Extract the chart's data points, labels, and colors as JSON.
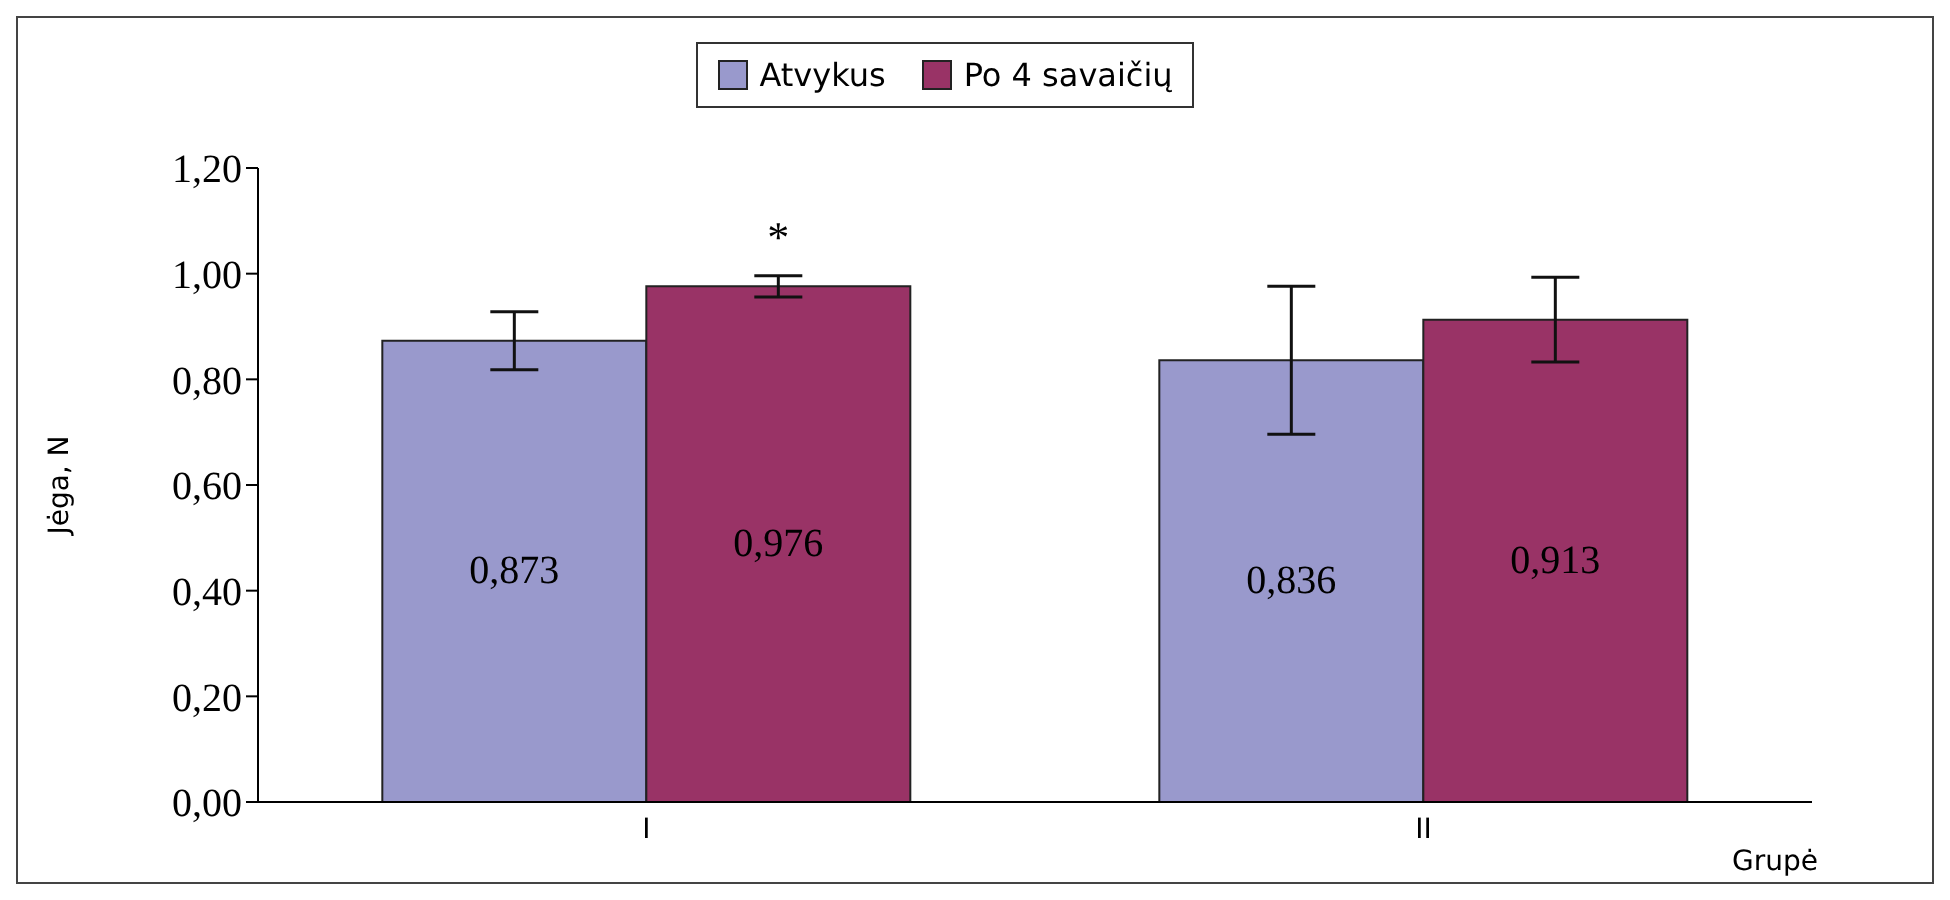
{
  "chart_data": {
    "type": "bar",
    "categories": [
      "I",
      "II"
    ],
    "series": [
      {
        "name": "Atvykus",
        "color": "#9999cc",
        "values": [
          0.873,
          0.836
        ],
        "errors": [
          0.055,
          0.14
        ],
        "value_labels": [
          "0,873",
          "0,836"
        ]
      },
      {
        "name": "Po 4 savaičių",
        "color": "#993366",
        "values": [
          0.976,
          0.913
        ],
        "errors": [
          0.02,
          0.08
        ],
        "value_labels": [
          "0,976",
          "0,913"
        ]
      }
    ],
    "ylabel": "Jėga, N",
    "xlabel": "Grupė",
    "ylim": [
      0,
      1.2
    ],
    "yticks": [
      {
        "value": 0,
        "label": "0,00"
      },
      {
        "value": 0.2,
        "label": "0,20"
      },
      {
        "value": 0.4,
        "label": "0,40"
      },
      {
        "value": 0.6,
        "label": "0,60"
      },
      {
        "value": 0.8,
        "label": "0,80"
      },
      {
        "value": 1,
        "label": "1,00"
      },
      {
        "value": 1.2,
        "label": "1,20"
      }
    ],
    "annotations": [
      "*"
    ],
    "grid": false,
    "legend": "top"
  }
}
